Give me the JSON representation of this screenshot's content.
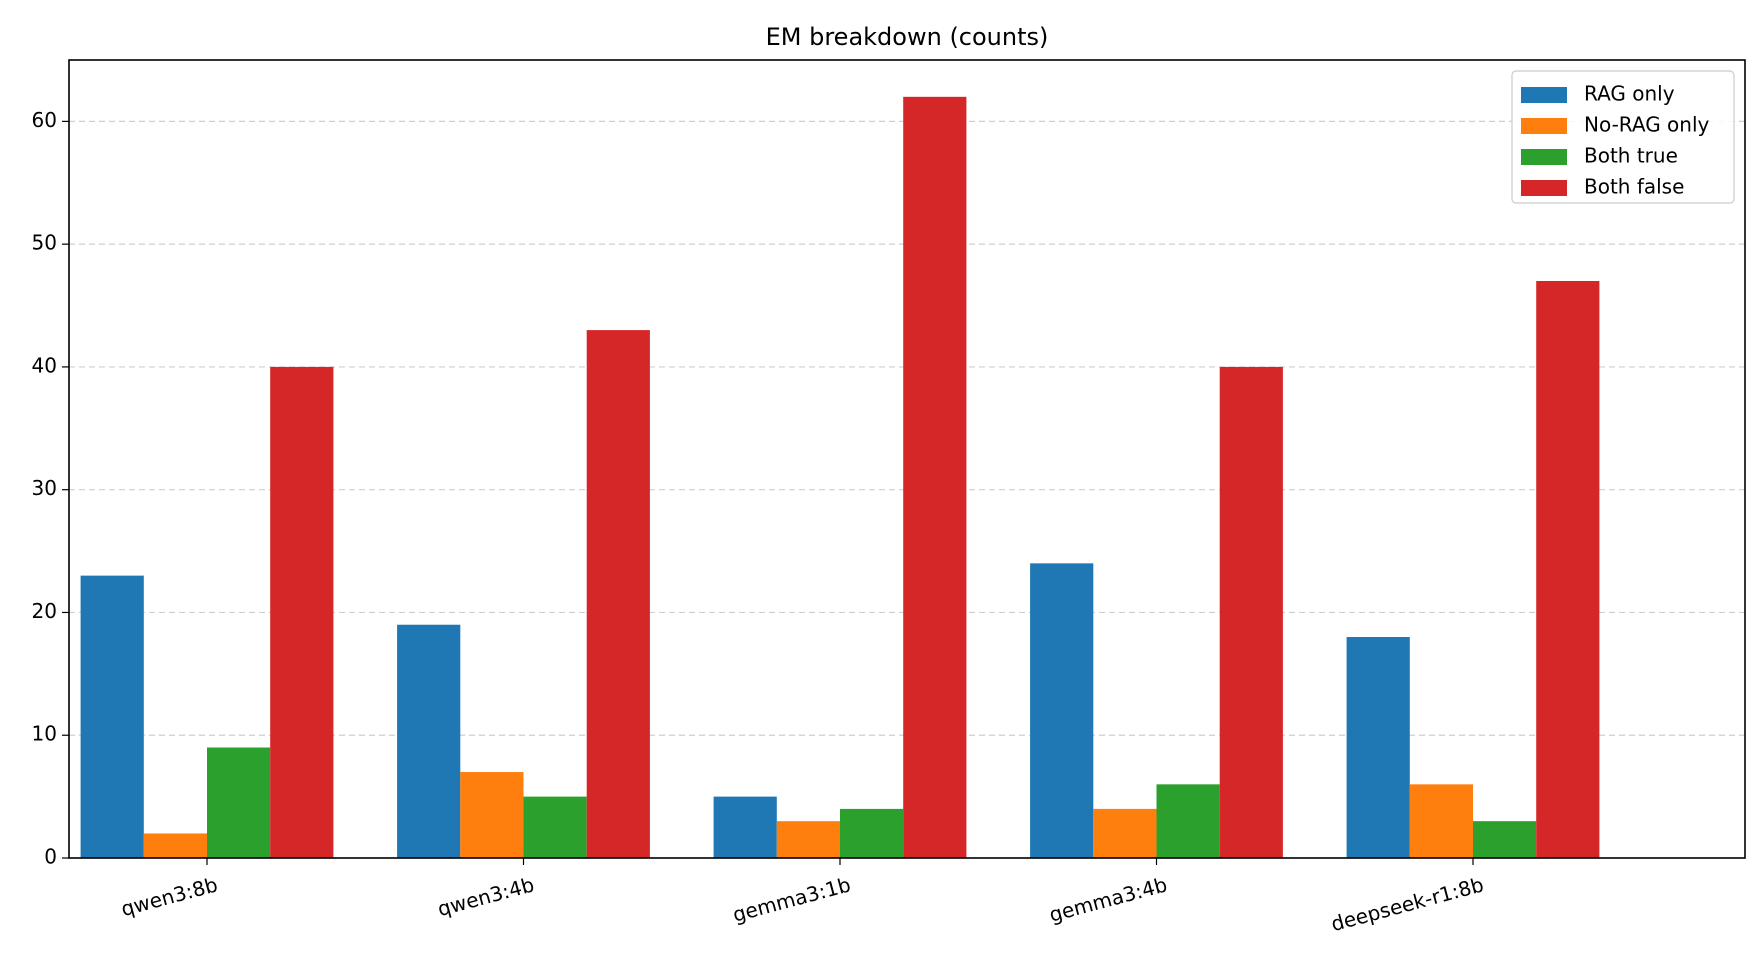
{
  "chart_data": {
    "type": "bar",
    "title": "EM breakdown (counts)",
    "xlabel": "",
    "ylabel": "",
    "categories": [
      "qwen3:8b",
      "qwen3:4b",
      "gemma3:1b",
      "gemma3:4b",
      "deepseek-r1:8b"
    ],
    "series": [
      {
        "name": "RAG only",
        "color": "#1f77b4",
        "values": [
          23,
          19,
          5,
          24,
          18
        ]
      },
      {
        "name": "No-RAG only",
        "color": "#ff7f0e",
        "values": [
          2,
          7,
          3,
          4,
          6
        ]
      },
      {
        "name": "Both true",
        "color": "#2ca02c",
        "values": [
          9,
          5,
          4,
          6,
          3
        ]
      },
      {
        "name": "Both false",
        "color": "#d62728",
        "values": [
          40,
          43,
          62,
          40,
          47
        ]
      }
    ],
    "ylim": [
      0,
      65
    ],
    "yticks": [
      0,
      10,
      20,
      30,
      40,
      50,
      60
    ],
    "grid": "y, dashed",
    "legend_position": "top-right"
  }
}
